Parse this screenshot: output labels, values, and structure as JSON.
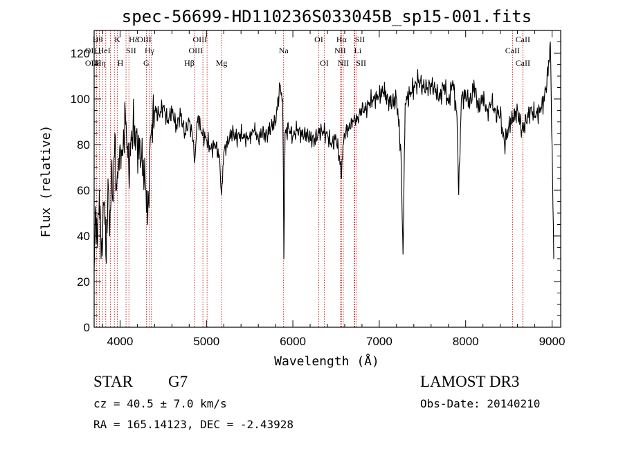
{
  "chart_data": {
    "type": "line",
    "title": "spec-56699-HD110236S033045B_sp15-001.fits",
    "xlabel": "Wavelength (Å)",
    "ylabel": "Flux (relative)",
    "xlim": [
      3700,
      9100
    ],
    "ylim": [
      0,
      130
    ],
    "xticks": [
      4000,
      5000,
      6000,
      7000,
      8000,
      9000
    ],
    "yticks": [
      0,
      20,
      40,
      60,
      80,
      100,
      120
    ],
    "grid": false,
    "series": [
      {
        "x": [
          3700,
          3720,
          3740,
          3760,
          3780,
          3800,
          3820,
          3840,
          3860,
          3880,
          3900,
          3920,
          3940,
          3960,
          3980,
          4000,
          4030,
          4060,
          4100,
          4150,
          4200,
          4250,
          4300,
          4320,
          4340,
          4360,
          4400,
          4450,
          4500,
          4550,
          4600,
          4650,
          4700,
          4750,
          4800,
          4850,
          4861,
          4900,
          4950,
          5000,
          5050,
          5100,
          5150,
          5175,
          5200,
          5250,
          5300,
          5350,
          5400,
          5450,
          5500,
          5550,
          5600,
          5650,
          5700,
          5750,
          5800,
          5850,
          5880,
          5890,
          5896,
          5910,
          5950,
          6000,
          6050,
          6100,
          6150,
          6200,
          6250,
          6300,
          6350,
          6400,
          6450,
          6500,
          6550,
          6563,
          6580,
          6600,
          6650,
          6700,
          6750,
          6800,
          6850,
          6900,
          6950,
          7000,
          7050,
          7100,
          7150,
          7200,
          7250,
          7275,
          7300,
          7350,
          7400,
          7450,
          7500,
          7550,
          7600,
          7650,
          7700,
          7750,
          7800,
          7850,
          7900,
          7920,
          7950,
          8000,
          8050,
          8100,
          8150,
          8200,
          8250,
          8300,
          8350,
          8400,
          8450,
          8500,
          8550,
          8600,
          8650,
          8700,
          8750,
          8800,
          8850,
          8900,
          8950,
          8980,
          9000,
          9020
        ],
        "values": [
          25,
          50,
          35,
          60,
          30,
          45,
          55,
          28,
          65,
          40,
          70,
          55,
          85,
          60,
          70,
          80,
          75,
          95,
          70,
          88,
          80,
          75,
          60,
          45,
          70,
          85,
          95,
          93,
          97,
          90,
          95,
          88,
          93,
          85,
          90,
          82,
          72,
          92,
          85,
          82,
          78,
          80,
          75,
          58,
          76,
          82,
          85,
          83,
          85,
          82,
          84,
          86,
          83,
          85,
          84,
          88,
          90,
          106,
          100,
          70,
          30,
          85,
          87,
          84,
          86,
          85,
          84,
          83,
          82,
          85,
          86,
          84,
          80,
          83,
          72,
          65,
          80,
          84,
          88,
          90,
          92,
          95,
          96,
          99,
          100,
          102,
          103,
          100,
          98,
          100,
          78,
          32,
          98,
          102,
          105,
          108,
          106,
          104,
          107,
          103,
          101,
          106,
          98,
          108,
          92,
          58,
          100,
          102,
          98,
          106,
          96,
          100,
          95,
          98,
          94,
          93,
          80,
          88,
          92,
          95,
          86,
          90,
          96,
          92,
          95,
          98,
          110,
          125,
          80,
          30
        ]
      }
    ],
    "line_markers": [
      {
        "label": "Hθ",
        "wavelength": 3798,
        "row": 1
      },
      {
        "label": "OII",
        "wavelength": 3727,
        "row": 2
      },
      {
        "label": "OIII",
        "wavelength": 3760,
        "row": 3
      },
      {
        "label": "K",
        "wavelength": 3934,
        "row": 1
      },
      {
        "label": "HeI",
        "wavelength": 3889,
        "row": 2
      },
      {
        "label": "Hη",
        "wavelength": 3835,
        "row": 3
      },
      {
        "label": "SII",
        "wavelength": 4069,
        "row": 2
      },
      {
        "label": "Hδ",
        "wavelength": 4102,
        "row": 1
      },
      {
        "label": "H",
        "wavelength": 3969,
        "row": 3
      },
      {
        "label": "OIII",
        "wavelength": 4363,
        "row": 1
      },
      {
        "label": "Hγ",
        "wavelength": 4341,
        "row": 2
      },
      {
        "label": "G",
        "wavelength": 4304,
        "row": 3
      },
      {
        "label": "Hβ",
        "wavelength": 4861,
        "row": 3
      },
      {
        "label": "OIII",
        "wavelength": 5007,
        "row": 1
      },
      {
        "label": "OIII",
        "wavelength": 4959,
        "row": 2
      },
      {
        "label": "Mg",
        "wavelength": 5175,
        "row": 3
      },
      {
        "label": "Na",
        "wavelength": 5893,
        "row": 2
      },
      {
        "label": "OI",
        "wavelength": 6300,
        "row": 1
      },
      {
        "label": "OI",
        "wavelength": 6364,
        "row": 3
      },
      {
        "label": "Hα",
        "wavelength": 6563,
        "row": 1
      },
      {
        "label": "NII",
        "wavelength": 6548,
        "row": 2
      },
      {
        "label": "NII",
        "wavelength": 6584,
        "row": 3
      },
      {
        "label": "SII",
        "wavelength": 6717,
        "row": 1
      },
      {
        "label": "Li",
        "wavelength": 6708,
        "row": 2
      },
      {
        "label": "SII",
        "wavelength": 6731,
        "row": 3
      },
      {
        "label": "CaII",
        "wavelength": 8662,
        "row": 1
      },
      {
        "label": "CaII",
        "wavelength": 8542,
        "row": 2
      },
      {
        "label": "CaII",
        "wavelength": 8662,
        "row": 3
      }
    ]
  },
  "info": {
    "class_label": "STAR",
    "subclass": "G7",
    "survey": "LAMOST DR3",
    "redshift_text": "cz = 40.5 ± 7.0 km/s",
    "obs_date_text": "Obs-Date: 20140210",
    "coords_text": "RA = 165.14123, DEC =  -2.43928"
  },
  "colors": {
    "spectrum": "#000000",
    "marker_line": "#c00000",
    "axes": "#000000"
  }
}
